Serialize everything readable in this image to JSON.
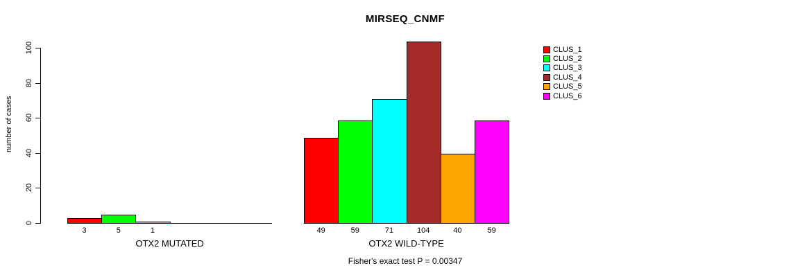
{
  "chart_data": {
    "type": "bar",
    "title": "MIRSEQ_CNMF",
    "ylabel": "number of cases",
    "xlabel": "",
    "ylim": [
      0,
      100
    ],
    "yticks": [
      0,
      20,
      40,
      60,
      80,
      100
    ],
    "grid": false,
    "legend_position": "right-inside",
    "legend": [
      {
        "label": "CLUS_1",
        "color": "#ff0000"
      },
      {
        "label": "CLUS_2",
        "color": "#00ff00"
      },
      {
        "label": "CLUS_3",
        "color": "#00ffff"
      },
      {
        "label": "CLUS_4",
        "color": "#a52a2a"
      },
      {
        "label": "CLUS_5",
        "color": "#ffa500"
      },
      {
        "label": "CLUS_6",
        "color": "#ff00ff"
      }
    ],
    "series_colors": [
      "#ff0000",
      "#00ff00",
      "#00ffff",
      "#a52a2a",
      "#ffa500",
      "#ff00ff"
    ],
    "groups": [
      {
        "label": "OTX2 MUTATED",
        "values": [
          3,
          5,
          1,
          0,
          0,
          0
        ]
      },
      {
        "label": "OTX2 WILD-TYPE",
        "values": [
          49,
          59,
          71,
          104,
          40,
          59
        ]
      }
    ],
    "bar_value_labels_shown": [
      [
        3,
        5,
        1
      ],
      [
        49,
        59,
        71,
        104,
        40,
        59
      ]
    ],
    "footnote": "Fisher's exact test P = 0.00347",
    "axis_color": "#000000",
    "background_color": "#ffffff"
  }
}
